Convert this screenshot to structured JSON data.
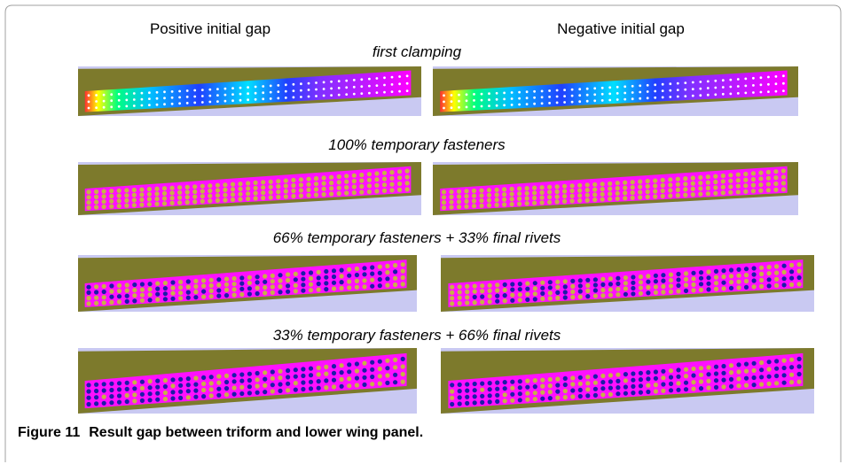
{
  "columns": [
    "Positive initial gap",
    "Negative initial gap"
  ],
  "rows": [
    "first clamping",
    "100% temporary fasteners",
    "66% temporary fasteners + 33% final rivets",
    "33% temporary fasteners + 66% final rivets"
  ],
  "caption": {
    "label": "Figure 11",
    "text": "Result gap between triform and lower wing panel."
  }
}
